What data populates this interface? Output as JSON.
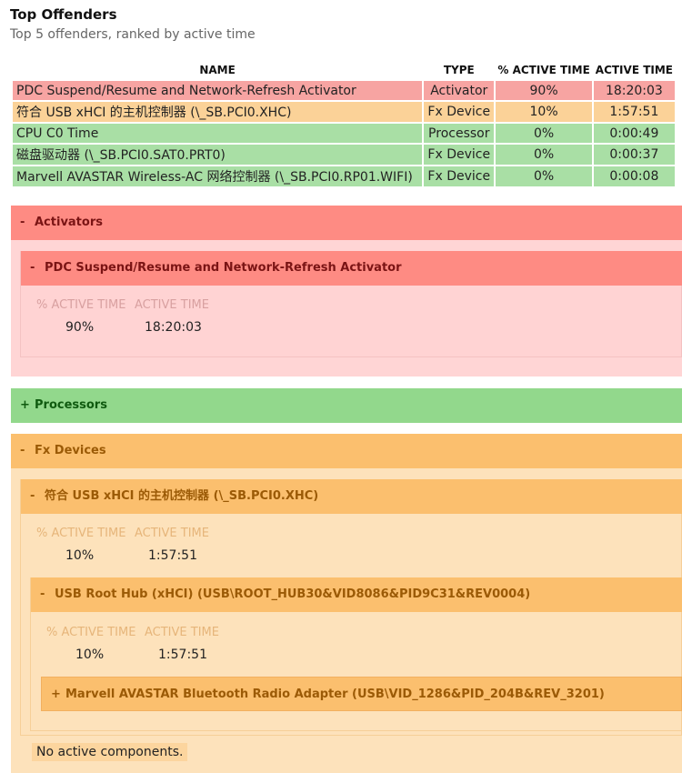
{
  "header": {
    "title": "Top Offenders",
    "subtitle": "Top 5 offenders, ranked by active time"
  },
  "table": {
    "columns": [
      "NAME",
      "TYPE",
      "% ACTIVE TIME",
      "ACTIVE TIME"
    ],
    "rows": [
      {
        "name": "PDC Suspend/Resume and Network-Refresh Activator",
        "type": "Activator",
        "percent": "90%",
        "time": "18:20:03"
      },
      {
        "name": "符合 USB xHCI 的主机控制器 (\\_SB.PCI0.XHC)",
        "type": "Fx Device",
        "percent": "10%",
        "time": "1:57:51"
      },
      {
        "name": "CPU C0 Time",
        "type": "Processor",
        "percent": "0%",
        "time": "0:00:49"
      },
      {
        "name": "磁盘驱动器 (\\_SB.PCI0.SAT0.PRT0)",
        "type": "Fx Device",
        "percent": "0%",
        "time": "0:00:37"
      },
      {
        "name": "Marvell AVASTAR Wireless-AC 网络控制器 (\\_SB.PCI0.RP01.WIFI)",
        "type": "Fx Device",
        "percent": "0%",
        "time": "0:00:08"
      }
    ]
  },
  "sections": {
    "activators": {
      "toggle": "-",
      "title": "Activators",
      "item": {
        "toggle": "-",
        "title": "PDC Suspend/Resume and Network-Refresh Activator",
        "percent_label": "% ACTIVE TIME",
        "time_label": "ACTIVE TIME",
        "percent": "90%",
        "time": "18:20:03"
      }
    },
    "processors": {
      "toggle": "+",
      "title": "Processors"
    },
    "fx_devices": {
      "toggle": "-",
      "title": "Fx Devices",
      "item": {
        "toggle": "-",
        "title": "符合 USB xHCI 的主机控制器 (\\_SB.PCI0.XHC)",
        "percent_label": "% ACTIVE TIME",
        "time_label": "ACTIVE TIME",
        "percent": "10%",
        "time": "1:57:51",
        "child": {
          "toggle": "-",
          "title": "USB Root Hub (xHCI) (USB\\ROOT_HUB30&VID8086&PID9C31&REV0004)",
          "percent_label": "% ACTIVE TIME",
          "time_label": "ACTIVE TIME",
          "percent": "10%",
          "time": "1:57:51",
          "child": {
            "toggle": "+",
            "title": "Marvell AVASTAR Bluetooth Radio Adapter (USB\\VID_1286&PID_204B&REV_3201)"
          }
        }
      },
      "note": "No active components."
    }
  },
  "colors": {
    "red_header": "#fe8b83",
    "red_panel": "#ffd5d5",
    "green_header": "#92d88c",
    "orange_header": "#fbbf6e",
    "orange_panel": "#fde2bb"
  }
}
